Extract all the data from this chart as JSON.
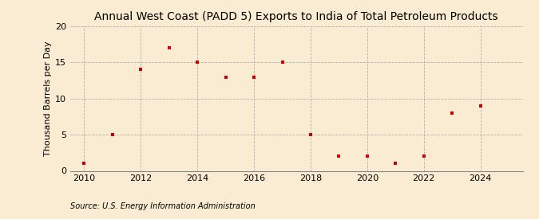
{
  "title": "Annual West Coast (PADD 5) Exports to India of Total Petroleum Products",
  "ylabel": "Thousand Barrels per Day",
  "source": "Source: U.S. Energy Information Administration",
  "background_color": "#faecd2",
  "x_values": [
    2010,
    2011,
    2012,
    2013,
    2014,
    2015,
    2016,
    2017,
    2018,
    2019,
    2020,
    2021,
    2022,
    2023,
    2024
  ],
  "y_values": [
    1,
    5,
    14,
    17,
    15,
    13,
    13,
    15,
    5,
    2,
    2,
    1,
    2,
    8,
    9
  ],
  "marker_color": "#cc0000",
  "marker": "s",
  "marker_size": 3.5,
  "ylim": [
    0,
    20
  ],
  "xlim": [
    2009.5,
    2025.5
  ],
  "xticks": [
    2010,
    2012,
    2014,
    2016,
    2018,
    2020,
    2022,
    2024
  ],
  "yticks": [
    0,
    5,
    10,
    15,
    20
  ],
  "grid_color": "#aaaaaa",
  "title_fontsize": 10,
  "label_fontsize": 8,
  "tick_fontsize": 8,
  "source_fontsize": 7
}
